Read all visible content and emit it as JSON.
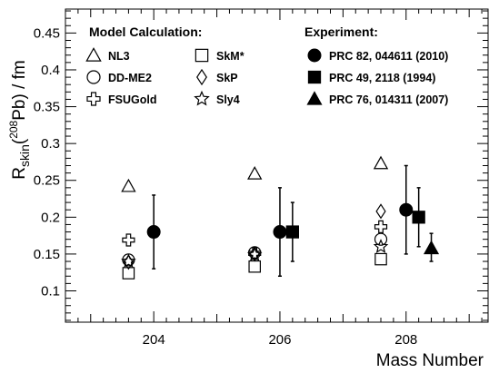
{
  "chart_data": {
    "type": "scatter",
    "xlabel": "Mass Number",
    "ylabel": {
      "main": "R",
      "sub": "skin",
      "paren_open": "(",
      "sup": "208",
      "iso": "Pb",
      "rest": ") / fm"
    },
    "xlim": [
      202.6,
      209.3
    ],
    "ylim": [
      0.0575,
      0.4825
    ],
    "x_ticks": [
      204,
      206,
      208
    ],
    "y_ticks": [
      0.1,
      0.15,
      0.2,
      0.25,
      0.3,
      0.35,
      0.4,
      0.45
    ],
    "y_tick_labels": [
      "0.1",
      "0.15",
      "0.2",
      "0.25",
      "0.3",
      "0.35",
      "0.4",
      "0.45"
    ],
    "legend": {
      "model_title": "Model Calculation:",
      "experiment_title": "Experiment:"
    },
    "models": [
      {
        "name": "NL3",
        "marker": "triangle-open",
        "points": [
          {
            "x": 203.6,
            "y": 0.242
          },
          {
            "x": 205.6,
            "y": 0.259
          },
          {
            "x": 207.6,
            "y": 0.273
          }
        ]
      },
      {
        "name": "SkM*",
        "marker": "square-open",
        "points": [
          {
            "x": 203.6,
            "y": 0.124
          },
          {
            "x": 205.6,
            "y": 0.133
          },
          {
            "x": 207.6,
            "y": 0.143
          }
        ]
      },
      {
        "name": "DD-ME2",
        "marker": "circle-open",
        "points": [
          {
            "x": 203.6,
            "y": 0.142
          },
          {
            "x": 205.6,
            "y": 0.152
          },
          {
            "x": 207.6,
            "y": 0.17
          }
        ]
      },
      {
        "name": "SkP",
        "marker": "diamond-open",
        "points": [
          {
            "x": 203.6,
            "y": 0.139
          },
          {
            "x": 205.6,
            "y": 0.15
          },
          {
            "x": 207.6,
            "y": 0.208
          }
        ]
      },
      {
        "name": "FSUGold",
        "marker": "cross-open",
        "points": [
          {
            "x": 203.6,
            "y": 0.169
          },
          {
            "x": 205.6,
            "y": 0.151
          },
          {
            "x": 207.6,
            "y": 0.187
          }
        ]
      },
      {
        "name": "Sly4",
        "marker": "star-open",
        "points": [
          {
            "x": 203.6,
            "y": 0.14
          },
          {
            "x": 205.6,
            "y": 0.149
          },
          {
            "x": 207.6,
            "y": 0.16
          }
        ]
      }
    ],
    "experiments": [
      {
        "name": "PRC 82, 044611 (2010)",
        "marker": "circle-filled",
        "points": [
          {
            "x": 204.0,
            "y": 0.18,
            "lo": 0.13,
            "hi": 0.23
          },
          {
            "x": 206.0,
            "y": 0.18,
            "lo": 0.12,
            "hi": 0.24
          },
          {
            "x": 208.0,
            "y": 0.21,
            "lo": 0.15,
            "hi": 0.27
          }
        ]
      },
      {
        "name": "PRC 49, 2118 (1994)",
        "marker": "square-filled",
        "points": [
          {
            "x": 206.2,
            "y": 0.18,
            "lo": 0.14,
            "hi": 0.22
          },
          {
            "x": 208.2,
            "y": 0.2,
            "lo": 0.16,
            "hi": 0.24
          }
        ]
      },
      {
        "name": "PRC 76, 014311 (2007)",
        "marker": "triangle-filled",
        "points": [
          {
            "x": 208.4,
            "y": 0.158,
            "lo": 0.14,
            "hi": 0.178
          }
        ]
      }
    ]
  }
}
